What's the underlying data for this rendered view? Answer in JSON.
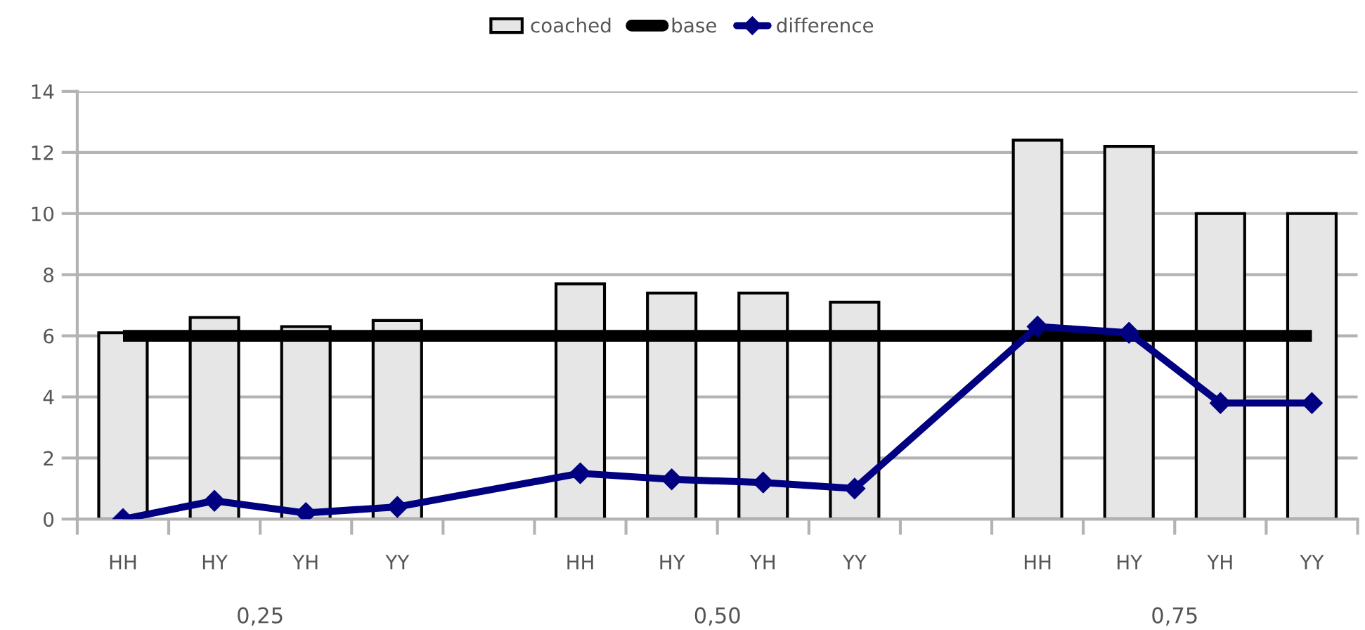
{
  "chart_data": {
    "type": "bar",
    "categories": [
      "HH",
      "HY",
      "YH",
      "YY",
      null,
      "HH",
      "HY",
      "YH",
      "YY",
      null,
      "HH",
      "HY",
      "YH",
      "YY"
    ],
    "series": [
      {
        "name": "coached",
        "color": "#e6e6e6",
        "values": [
          6.1,
          6.6,
          6.3,
          6.5,
          null,
          7.7,
          7.4,
          7.4,
          7.1,
          null,
          12.4,
          12.2,
          10.0,
          10.0
        ]
      },
      {
        "type": "line",
        "name": "base",
        "color": "#000000",
        "marker": "none",
        "values": [
          6,
          6,
          6,
          6,
          null,
          6,
          6,
          6,
          6,
          null,
          6,
          6,
          6,
          6
        ]
      },
      {
        "type": "line",
        "name": "difference",
        "color": "#000080",
        "marker": "diamond",
        "values": [
          0,
          0.6,
          0.2,
          0.4,
          null,
          1.5,
          1.3,
          1.2,
          1.0,
          null,
          6.3,
          6.1,
          3.8,
          3.8
        ]
      }
    ],
    "annotations": [
      "0,25",
      "0,50",
      "0,75"
    ],
    "ylim": [
      0,
      14
    ],
    "yticks": [
      0,
      2,
      4,
      6,
      8,
      10,
      12,
      14
    ],
    "grid": "y",
    "legend": "top"
  }
}
